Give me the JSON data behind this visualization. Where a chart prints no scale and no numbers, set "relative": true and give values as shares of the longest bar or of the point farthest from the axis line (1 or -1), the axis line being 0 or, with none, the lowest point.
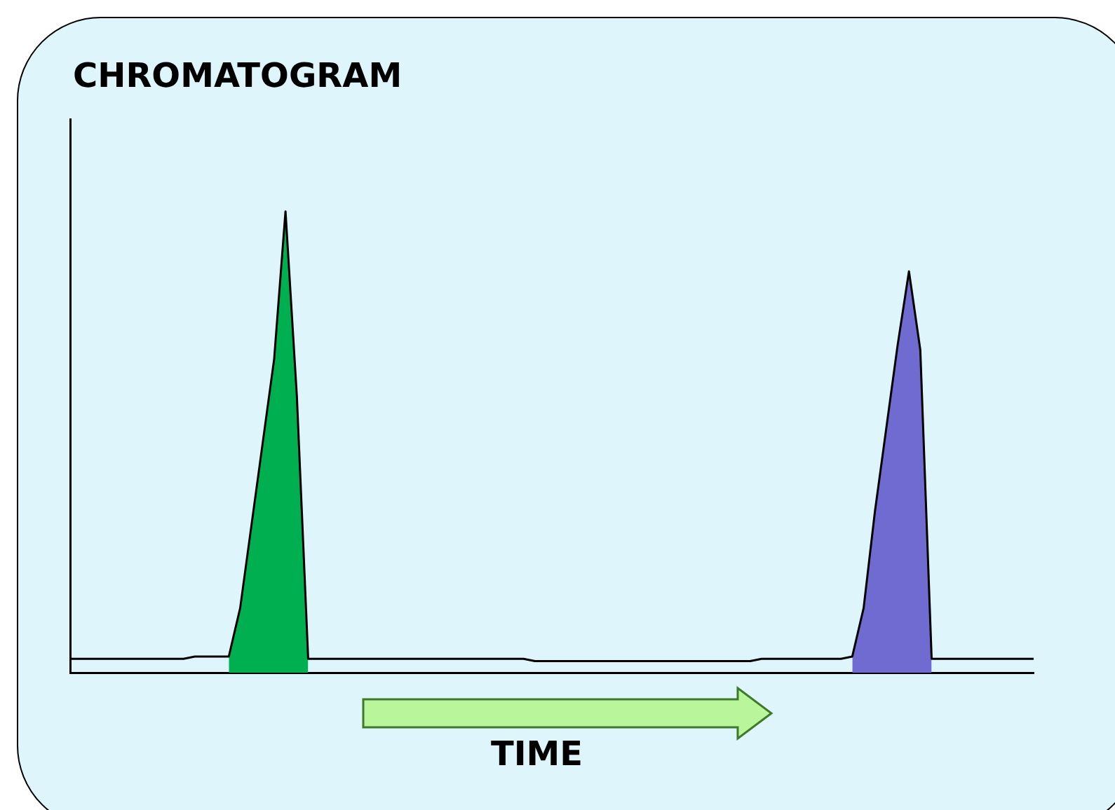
{
  "chart_data": {
    "type": "area",
    "title": "CHROMATOGRAM",
    "xlabel": "TIME",
    "relative": true,
    "legend": false,
    "grid": false,
    "tick_labels": false,
    "categories": [
      null,
      null,
      null,
      null,
      null,
      null,
      null,
      null,
      null,
      null,
      null,
      null,
      null,
      null,
      null,
      null,
      null,
      null,
      null,
      null,
      null,
      null,
      null,
      null,
      null,
      null,
      null,
      null,
      null,
      null,
      null,
      null,
      null,
      null,
      null,
      null,
      null,
      null,
      null,
      null,
      null,
      null,
      null,
      null,
      null,
      null,
      null,
      null,
      null,
      null,
      null,
      null,
      null,
      null,
      null,
      null,
      null,
      null,
      null,
      null,
      null,
      null,
      null,
      null,
      null,
      null,
      null,
      null,
      null,
      null,
      null,
      null,
      null,
      null,
      null,
      null,
      null,
      null,
      null,
      null,
      null,
      null,
      null,
      null,
      null,
      null
    ],
    "series": [
      {
        "type": "area",
        "color": "#00b050",
        "values": [
          null,
          null,
          null,
          null,
          null,
          null,
          null,
          null,
          null,
          null,
          null,
          null,
          null,
          null,
          0.035,
          0.14,
          0.32,
          0.5,
          0.68,
          1,
          0.6,
          0.03,
          null,
          null,
          null,
          null,
          null,
          null,
          null,
          null,
          null,
          null,
          null,
          null,
          null,
          null,
          null,
          null,
          null,
          null,
          null,
          null,
          null,
          null,
          null,
          null,
          null,
          null,
          null,
          null,
          null,
          null,
          null,
          null,
          null,
          null,
          null,
          null,
          null,
          null,
          null,
          null,
          null,
          null,
          null,
          null,
          null,
          null,
          null,
          null,
          null,
          null,
          null,
          null,
          null,
          null,
          null,
          null,
          null,
          null,
          null,
          null,
          null,
          null,
          null,
          null
        ]
      },
      {
        "type": "area",
        "color": "#6f6bd0",
        "values": [
          null,
          null,
          null,
          null,
          null,
          null,
          null,
          null,
          null,
          null,
          null,
          null,
          null,
          null,
          null,
          null,
          null,
          null,
          null,
          null,
          null,
          null,
          null,
          null,
          null,
          null,
          null,
          null,
          null,
          null,
          null,
          null,
          null,
          null,
          null,
          null,
          null,
          null,
          null,
          null,
          null,
          null,
          null,
          null,
          null,
          null,
          null,
          null,
          null,
          null,
          null,
          null,
          null,
          null,
          null,
          null,
          null,
          null,
          null,
          null,
          null,
          null,
          null,
          null,
          null,
          null,
          null,
          null,
          null,
          0.035,
          0.14,
          0.35,
          0.53,
          0.71,
          0.87,
          0.7,
          0.03,
          null,
          null,
          null,
          null,
          null,
          null,
          null,
          null,
          null
        ]
      },
      {
        "type": "line",
        "color": "#000000",
        "values": [
          0.03,
          0.03,
          0.03,
          0.03,
          0.03,
          0.03,
          0.03,
          0.03,
          0.03,
          0.03,
          0.03,
          0.035,
          0.035,
          0.035,
          0.035,
          0.14,
          0.32,
          0.5,
          0.68,
          1,
          0.6,
          0.03,
          0.03,
          0.03,
          0.03,
          0.03,
          0.03,
          0.03,
          0.03,
          0.03,
          0.03,
          0.03,
          0.03,
          0.03,
          0.03,
          0.03,
          0.03,
          0.03,
          0.03,
          0.03,
          0.03,
          0.025,
          0.025,
          0.025,
          0.025,
          0.025,
          0.025,
          0.025,
          0.025,
          0.025,
          0.025,
          0.025,
          0.025,
          0.025,
          0.025,
          0.025,
          0.025,
          0.025,
          0.025,
          0.025,
          0.025,
          0.03,
          0.03,
          0.03,
          0.03,
          0.03,
          0.03,
          0.03,
          0.03,
          0.035,
          0.14,
          0.35,
          0.53,
          0.71,
          0.87,
          0.7,
          0.03,
          0.03,
          0.03,
          0.03,
          0.03,
          0.03,
          0.03,
          0.03,
          0.03,
          0.03
        ]
      }
    ]
  }
}
